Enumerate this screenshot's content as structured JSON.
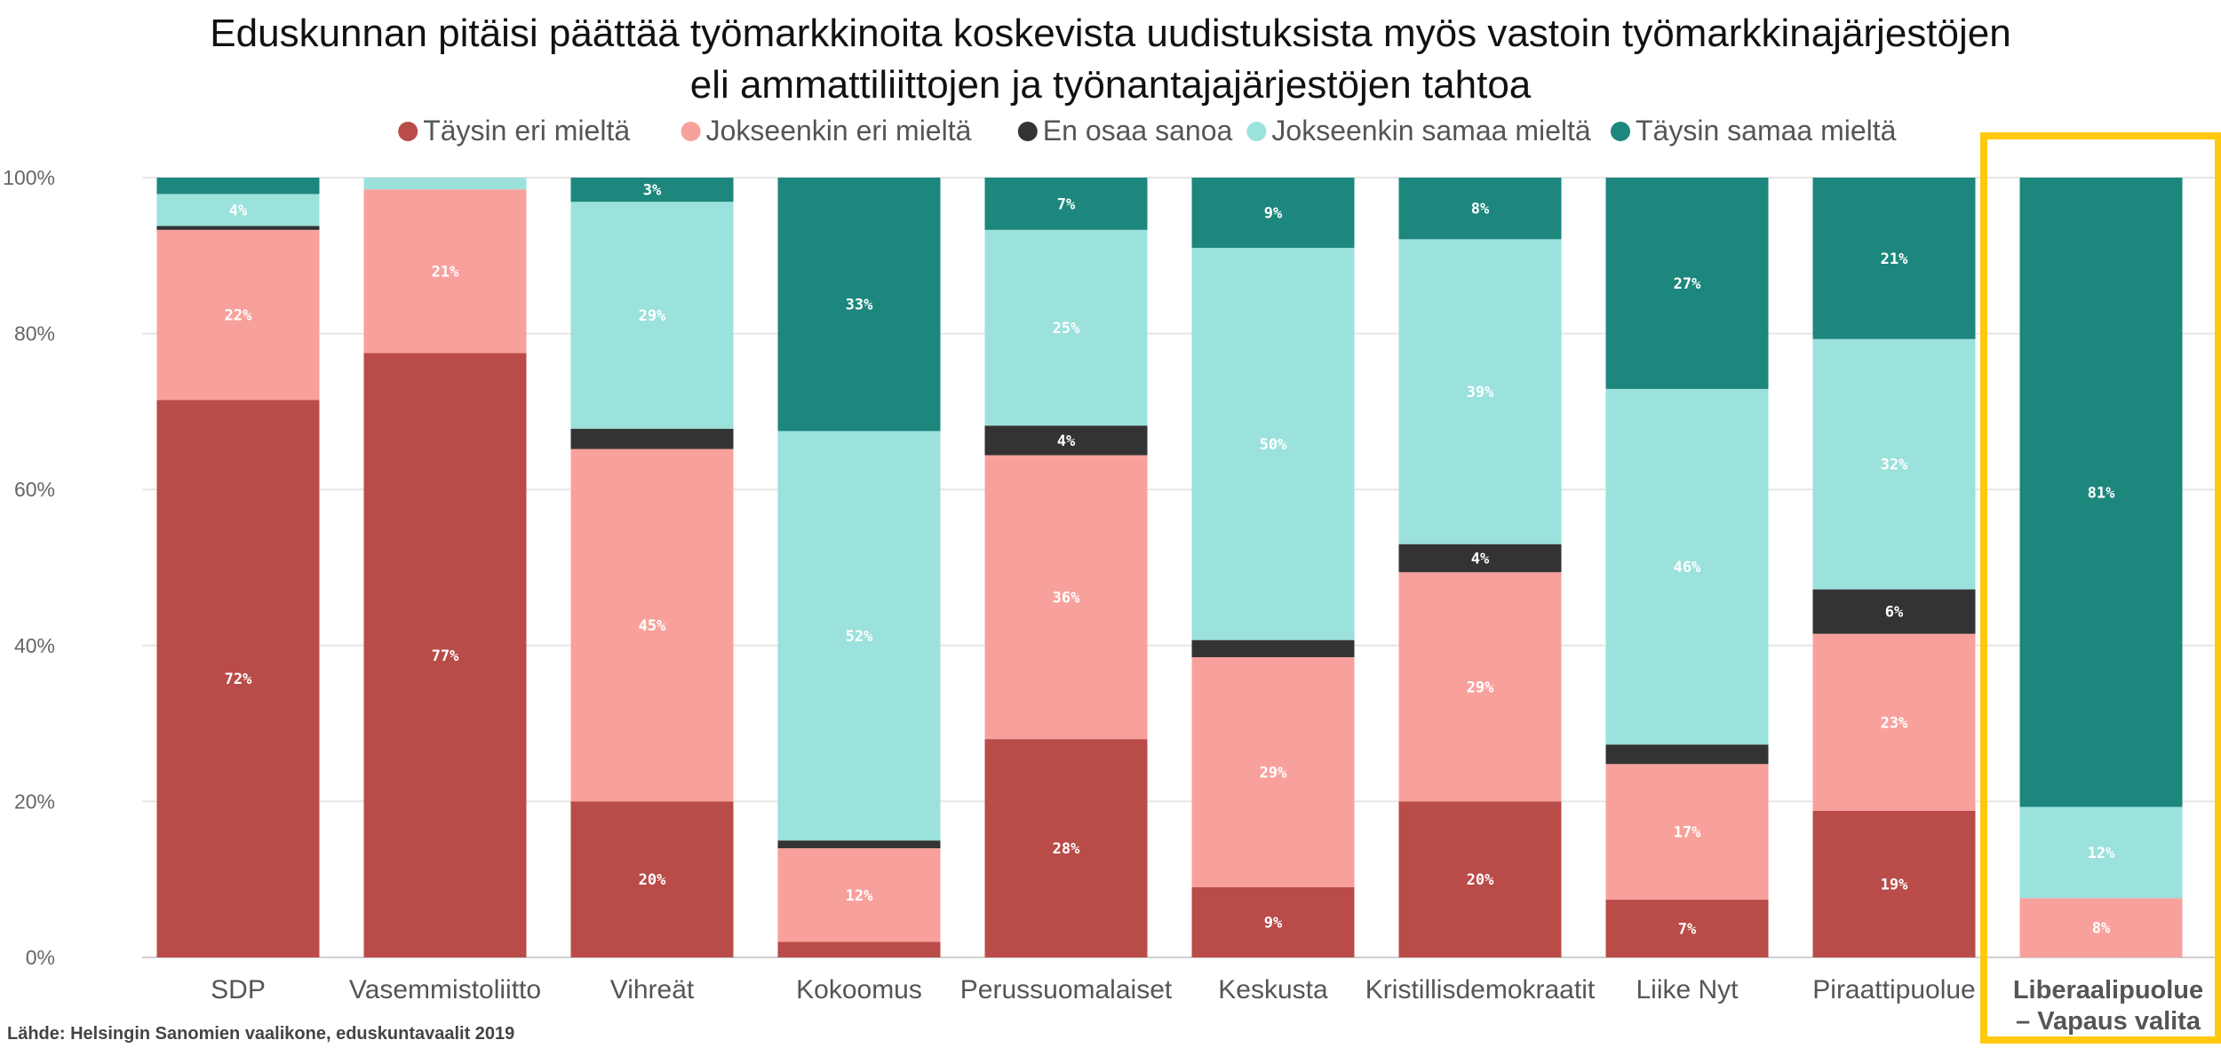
{
  "chart_data": {
    "type": "bar",
    "stacked": true,
    "title_lines": [
      "Eduskunnan pitäisi päättää työmarkkinoita koskevista uudistuksista myös vastoin työmarkkinajärjestöjen",
      "eli ammattiliittojen ja työnantajajärjestöjen tahtoa"
    ],
    "categories": [
      "SDP",
      "Vasemmistoliitto",
      "Vihreät",
      "Kokoomus",
      "Perussuomalaiset",
      "Keskusta",
      "Kristillisdemokraatit",
      "Liike Nyt",
      "Piraattipuolue",
      "Liberaalipuolue – Vapaus valita"
    ],
    "highlight": {
      "category_index": 9,
      "label_lines": [
        "Liberaalipuolue",
        "– Vapaus valita"
      ],
      "color": "#FFC90E"
    },
    "yticks": [
      "0%",
      "20%",
      "40%",
      "60%",
      "80%",
      "100%"
    ],
    "ylim": [
      0,
      100
    ],
    "grid": true,
    "legend_position": "top",
    "series": [
      {
        "name": "Täysin eri mieltä",
        "color": "#B94C48",
        "label_color": "#FFFFFF",
        "values": [
          71.5,
          77.5,
          20,
          2,
          28,
          9,
          20,
          7.4,
          18.8,
          0
        ],
        "labels": [
          "72%",
          "77%",
          "20%",
          "",
          "28%",
          "9%",
          "20%",
          "7%",
          "19%",
          ""
        ]
      },
      {
        "name": "Jokseenkin eri mieltä",
        "color": "#F8A19C",
        "label_color": "#FFFFFF",
        "values": [
          21.8,
          21,
          45.2,
          12,
          36.4,
          29.5,
          29.4,
          17.4,
          22.7,
          7.6
        ],
        "labels": [
          "22%",
          "21%",
          "45%",
          "12%",
          "36%",
          "29%",
          "29%",
          "17%",
          "23%",
          "8%"
        ]
      },
      {
        "name": "En osaa sanoa",
        "color": "#333333",
        "label_color": "#FFFFFF",
        "values": [
          0.5,
          0,
          2.6,
          1,
          3.8,
          2.2,
          3.6,
          2.5,
          5.7,
          0
        ],
        "labels": [
          "",
          "",
          "",
          "",
          "4%",
          "",
          "4%",
          "",
          "6%",
          ""
        ]
      },
      {
        "name": "Jokseenkin samaa mieltä",
        "color": "#9BE1DC",
        "label_color": "#FFFFFF",
        "values": [
          4.1,
          1.5,
          29.1,
          52.5,
          25.1,
          50.3,
          39.1,
          45.6,
          32.1,
          11.7
        ],
        "labels": [
          "4%",
          "",
          "29%",
          "52%",
          "25%",
          "50%",
          "39%",
          "46%",
          "32%",
          "12%"
        ]
      },
      {
        "name": "Täysin samaa mieltä",
        "color": "#1D877D",
        "label_color": "#FFFFFF",
        "values": [
          2.1,
          0,
          3.1,
          32.5,
          6.7,
          9,
          7.9,
          27.1,
          20.7,
          80.7
        ],
        "labels": [
          "",
          "",
          "3%",
          "33%",
          "7%",
          "9%",
          "8%",
          "27%",
          "21%",
          "81%"
        ]
      }
    ]
  },
  "source": "Lähde: Helsingin Sanomien vaalikone, eduskuntavaalit 2019"
}
